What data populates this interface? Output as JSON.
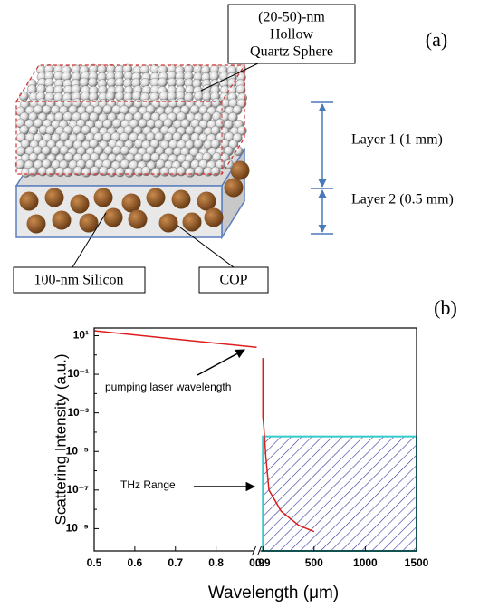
{
  "diagram": {
    "panel_a": "(a)",
    "panel_b": "(b)",
    "sphere_label": [
      "(20-50)-nm",
      "Hollow",
      "Quartz Sphere"
    ],
    "layer1": "Layer 1 (1 mm)",
    "layer2": "Layer 2 (0.5 mm)",
    "silicon_label": "100-nm Silicon",
    "cop_label": "COP"
  },
  "chart_data": {
    "type": "line",
    "y_label": "Scattering Intensity (a.u.)",
    "x_label": "Wavelength (μm)",
    "annotations": [
      "pumping laser wavelength",
      "THz  Range"
    ],
    "log_y": true,
    "color": "#dd1c1c",
    "ylim": [
      7e-11,
      25
    ],
    "yticks": [
      {
        "value": 10,
        "label": "10¹"
      },
      {
        "value": 0.1,
        "label": "10⁻¹"
      },
      {
        "value": 0.001,
        "label": "10⁻³"
      },
      {
        "value": 1e-05,
        "label": "10⁻⁵"
      },
      {
        "value": 1e-07,
        "label": "10⁻⁷"
      },
      {
        "value": 1e-09,
        "label": "10⁻⁹"
      }
    ],
    "x_segments": [
      {
        "xlim": [
          0.5,
          0.9
        ],
        "xticks": [
          0.5,
          0.6,
          0.7,
          0.8,
          0.9
        ],
        "x": [
          0.5,
          0.6,
          0.7,
          0.8,
          0.9
        ],
        "values": [
          18,
          11,
          6.7,
          4.1,
          2.5
        ]
      },
      {
        "xlim": [
          -50,
          1500
        ],
        "xticks": [
          0.9,
          500,
          1000,
          1500
        ],
        "x": [
          0.9,
          0.9,
          10,
          30,
          60,
          180,
          350,
          500
        ],
        "values": [
          0.7,
          0.0006,
          0.0002,
          5e-06,
          1e-07,
          8e-09,
          1.5e-09,
          7e-10
        ]
      }
    ],
    "highlight": {
      "xlim": [
        0.9,
        1500
      ],
      "ylim": [
        7e-11,
        6e-05
      ],
      "color": "#33cccc"
    }
  }
}
